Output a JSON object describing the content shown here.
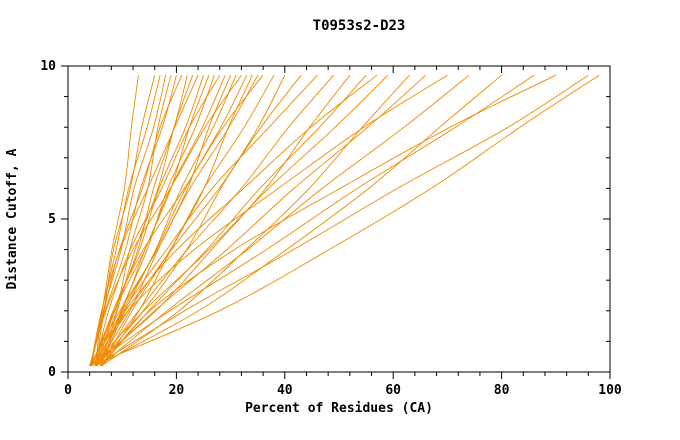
{
  "chart_data": {
    "type": "line",
    "title": "T0953s2-D23",
    "xlabel": "Percent of Residues (CA)",
    "ylabel": "Distance Cutoff, A",
    "xlim": [
      0,
      100
    ],
    "ylim": [
      0,
      10
    ],
    "xticks": {
      "major": [
        0,
        20,
        40,
        60,
        80,
        100
      ],
      "minor_step": 4
    },
    "yticks": {
      "major": [
        0,
        5,
        10
      ],
      "minor_step": 1
    },
    "line_color": "#f08a00",
    "axis_color": "#000000",
    "legend": "none",
    "grid": false,
    "sample_y": [
      0.2,
      2,
      4,
      6,
      8,
      9.7
    ],
    "series_x": [
      [
        4.2,
        6.3,
        8.1,
        10.4,
        11.7,
        13
      ],
      [
        4.0,
        6.6,
        8.4,
        11.5,
        13.6,
        16
      ],
      [
        5.1,
        6.3,
        8.9,
        11.2,
        14.6,
        17
      ],
      [
        4.3,
        6.5,
        9.8,
        12.2,
        15.8,
        18
      ],
      [
        5.0,
        8.9,
        11.4,
        14.7,
        16.6,
        19
      ],
      [
        4.1,
        6.9,
        10.6,
        13.4,
        17.4,
        20
      ],
      [
        5.2,
        6.7,
        9.5,
        13.7,
        17.0,
        21
      ],
      [
        4.4,
        8.6,
        12.9,
        15.8,
        19.6,
        22
      ],
      [
        6.0,
        9.1,
        12.4,
        16.6,
        19.6,
        23
      ],
      [
        4.2,
        6.2,
        9.6,
        14.7,
        19.7,
        24
      ],
      [
        5.3,
        8.6,
        13.2,
        16.8,
        21.7,
        25
      ],
      [
        4.0,
        9.9,
        14.2,
        19.0,
        22.4,
        26
      ],
      [
        6.1,
        9.8,
        14.6,
        18.4,
        23.5,
        27
      ],
      [
        5.0,
        7.5,
        11.5,
        17.3,
        22.4,
        28
      ],
      [
        4.3,
        8.5,
        14.2,
        18.9,
        24.8,
        29
      ],
      [
        5.2,
        11.4,
        16.6,
        22.1,
        26.0,
        30
      ],
      [
        6.0,
        10.5,
        16.2,
        20.9,
        26.8,
        31
      ],
      [
        4.1,
        7.0,
        12.0,
        18.9,
        25.3,
        32
      ],
      [
        5.4,
        10.1,
        16.3,
        21.7,
        28.2,
        33
      ],
      [
        6.2,
        13.1,
        19.0,
        25.1,
        29.6,
        34
      ],
      [
        4.0,
        9.6,
        16.5,
        22.5,
        29.7,
        35
      ],
      [
        5.1,
        8.3,
        13.9,
        21.5,
        28.6,
        36
      ],
      [
        6.3,
        11.8,
        18.9,
        25.1,
        32.5,
        38
      ],
      [
        5.2,
        13.9,
        21.9,
        28.2,
        35.1,
        40
      ],
      [
        4.4,
        11.1,
        19.1,
        27.9,
        35.6,
        43
      ],
      [
        6.0,
        10.3,
        18.2,
        26.6,
        37.1,
        46
      ],
      [
        5.3,
        13.0,
        22.0,
        32.0,
        40.7,
        49
      ],
      [
        4.2,
        16.2,
        26.5,
        36.5,
        44.6,
        52
      ],
      [
        6.1,
        14.9,
        25.6,
        35.4,
        46.4,
        55
      ],
      [
        5.0,
        10.6,
        20.1,
        32.4,
        44.8,
        57
      ],
      [
        4.3,
        14.0,
        26.0,
        37.0,
        49.3,
        59
      ],
      [
        6.2,
        20.5,
        32.8,
        44.5,
        54.3,
        63
      ],
      [
        5.1,
        16.0,
        29.3,
        41.7,
        55.3,
        66
      ],
      [
        4.0,
        11.1,
        23.3,
        38.8,
        54.6,
        70
      ],
      [
        6.0,
        18.3,
        33.1,
        46.9,
        62.0,
        74
      ],
      [
        5.2,
        24.1,
        40.3,
        55.5,
        68.6,
        80
      ],
      [
        4.1,
        18.8,
        36.6,
        53.4,
        71.5,
        86
      ],
      [
        6.3,
        15.1,
        30.7,
        50.2,
        70.5,
        90
      ],
      [
        5.0,
        21.5,
        41.6,
        60.8,
        81.2,
        96
      ],
      [
        4.2,
        27.9,
        48.2,
        67.0,
        83.4,
        98
      ]
    ]
  }
}
